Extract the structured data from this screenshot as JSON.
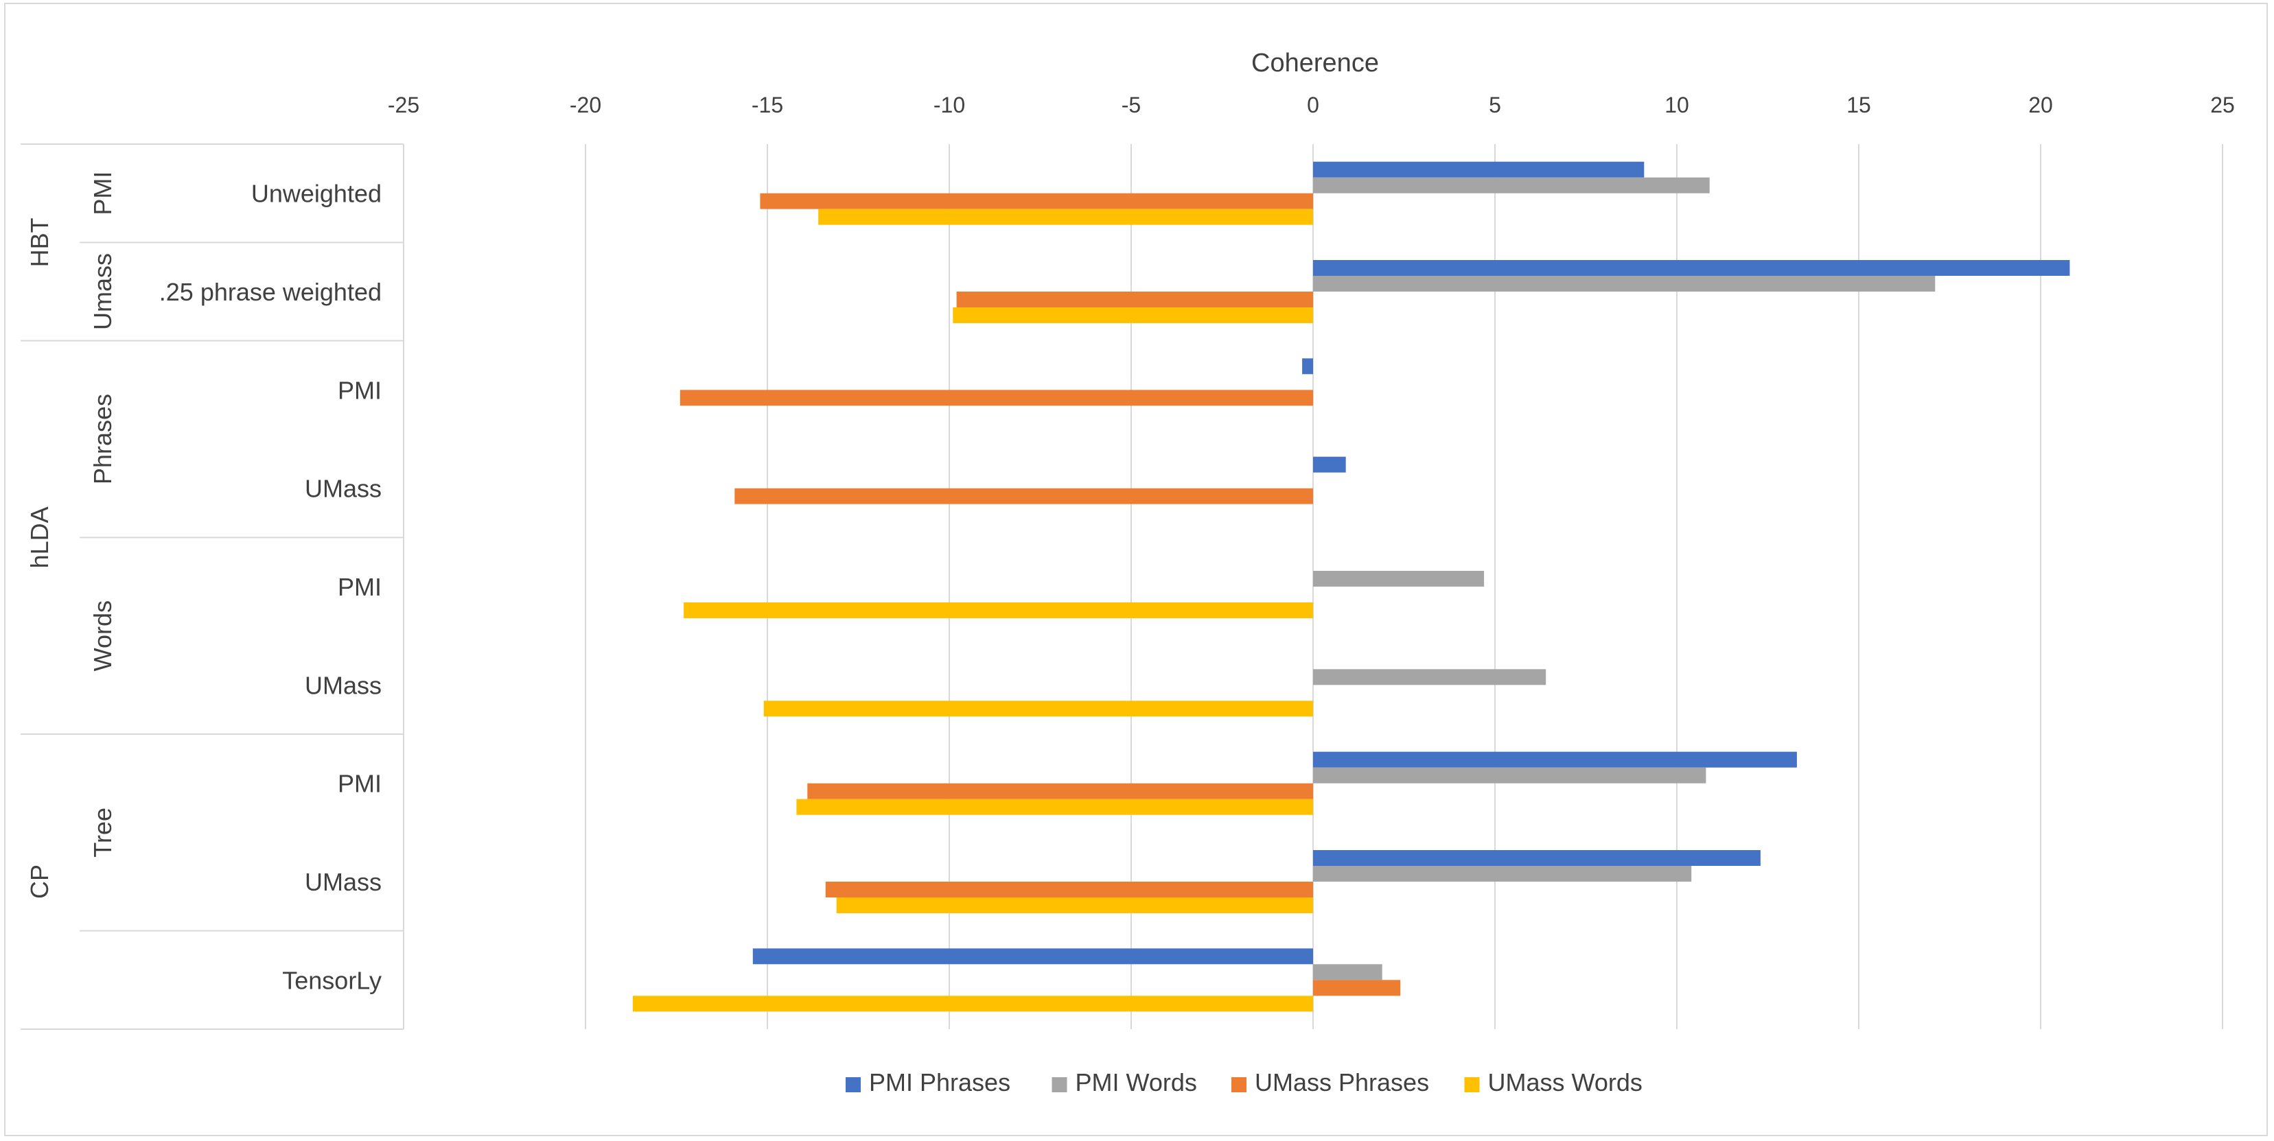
{
  "chart_data": {
    "type": "bar",
    "orientation": "horizontal",
    "xlabel": "Coherence",
    "xlim": [
      -25,
      25
    ],
    "x_ticks": [
      -25,
      -20,
      -15,
      -10,
      -5,
      0,
      5,
      10,
      15,
      20,
      25
    ],
    "x_tick_labels": [
      "-25",
      "-20",
      "-15",
      "-10",
      "-5",
      "0",
      "5",
      "10",
      "15",
      "20",
      "25"
    ],
    "grid": true,
    "legend_position": "bottom",
    "category_groups": [
      {
        "label": "HBT",
        "subgroups": [
          {
            "label": "PMI",
            "categories": [
              "Unweighted"
            ]
          },
          {
            "label": "Umass",
            "categories": [
              ".25 phrase weighted"
            ]
          }
        ]
      },
      {
        "label": "hLDA",
        "subgroups": [
          {
            "label": "Phrases",
            "categories": [
              "PMI",
              "UMass"
            ]
          },
          {
            "label": "Words",
            "categories": [
              "PMI",
              "UMass"
            ]
          }
        ]
      },
      {
        "label": "CP",
        "subgroups": [
          {
            "label": "Tree",
            "categories": [
              "PMI",
              "UMass"
            ]
          },
          {
            "label": "",
            "categories": [
              "TensorLy"
            ]
          }
        ]
      }
    ],
    "series": [
      {
        "name": "PMI Phrases",
        "color": "#4472C4",
        "values": [
          9.1,
          20.8,
          -0.3,
          0.9,
          null,
          null,
          13.3,
          12.3,
          -15.4
        ]
      },
      {
        "name": "PMI Words",
        "color": "#A5A5A5",
        "values": [
          10.9,
          17.1,
          null,
          null,
          4.7,
          6.4,
          10.8,
          10.4,
          1.9
        ]
      },
      {
        "name": "UMass Phrases",
        "color": "#ED7D31",
        "values": [
          -15.2,
          -9.8,
          -17.4,
          -15.9,
          null,
          null,
          -13.9,
          -13.4,
          2.4
        ]
      },
      {
        "name": "UMass Words",
        "color": "#FFC000",
        "values": [
          -13.6,
          -9.9,
          null,
          null,
          -17.3,
          -15.1,
          -14.2,
          -13.1,
          -18.7
        ]
      }
    ]
  }
}
